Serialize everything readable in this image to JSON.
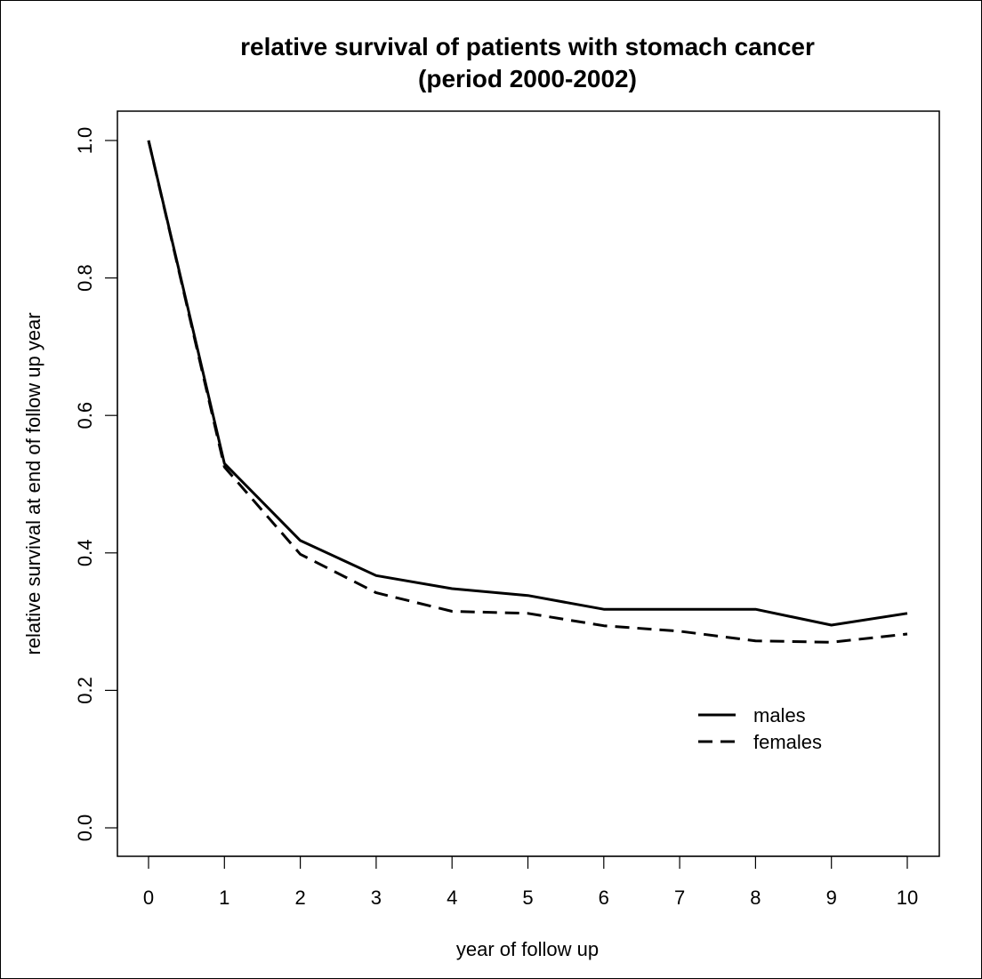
{
  "chart_data": {
    "type": "line",
    "title": "relative survival of patients with stomach cancer",
    "subtitle": "(period 2000-2002)",
    "xlabel": "year of follow up",
    "ylabel": "relative survival at end of follow up year",
    "x": [
      0,
      1,
      2,
      3,
      4,
      5,
      6,
      7,
      8,
      9,
      10
    ],
    "xticks": [
      "0",
      "1",
      "2",
      "3",
      "4",
      "5",
      "6",
      "7",
      "8",
      "9",
      "10"
    ],
    "yticks": [
      "0.0",
      "0.2",
      "0.4",
      "0.6",
      "0.8",
      "1.0"
    ],
    "ylim": [
      0.0,
      1.0
    ],
    "xlim": [
      0,
      10
    ],
    "grid": false,
    "legend_position": "bottom-right",
    "series": [
      {
        "name": "males",
        "style": "solid",
        "color": "#000000",
        "values": [
          1.0,
          0.53,
          0.418,
          0.367,
          0.348,
          0.338,
          0.318,
          0.318,
          0.318,
          0.295,
          0.312
        ]
      },
      {
        "name": "females",
        "style": "dashed",
        "color": "#000000",
        "values": [
          1.0,
          0.525,
          0.398,
          0.342,
          0.315,
          0.312,
          0.294,
          0.286,
          0.272,
          0.27,
          0.282
        ]
      }
    ]
  }
}
